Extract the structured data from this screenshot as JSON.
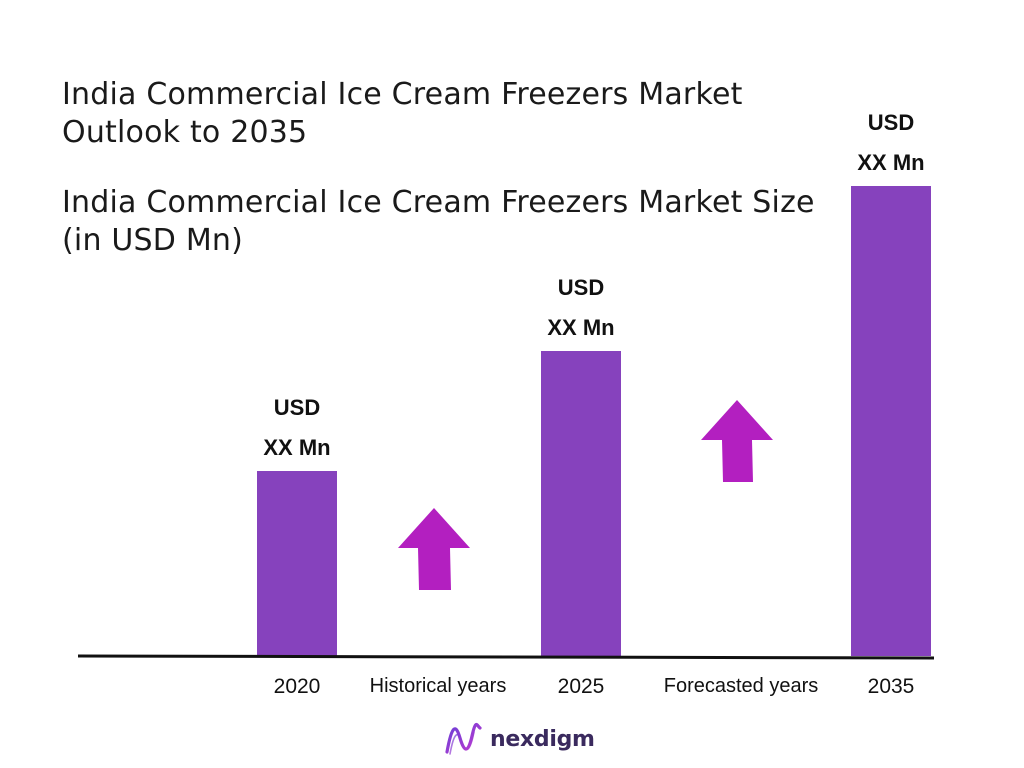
{
  "header": {
    "title": "India Commercial Ice Cream Freezers Market Outlook to 2035",
    "subtitle": "India Commercial Ice Cream Freezers Market Size (in USD Mn)"
  },
  "colors": {
    "bar": "#8642bd",
    "arrow": "#b31fc0",
    "axis": "#111111"
  },
  "chart_data": {
    "type": "bar",
    "title": "India Commercial Ice Cream Freezers Market Size (in USD Mn)",
    "categories": [
      "2020",
      "2025",
      "2035"
    ],
    "values": [
      37,
      61,
      94
    ],
    "value_labels": [
      [
        "USD",
        "XX Mn"
      ],
      [
        "USD",
        "XX Mn"
      ],
      [
        "USD",
        "XX Mn"
      ]
    ],
    "between_labels": [
      "Historical years",
      "Forecasted years"
    ],
    "ylim": [
      0,
      100
    ],
    "grid": false,
    "legend": "none"
  },
  "logo": {
    "text": "nexdigm",
    "icon": "nexdigm-wave-icon"
  }
}
